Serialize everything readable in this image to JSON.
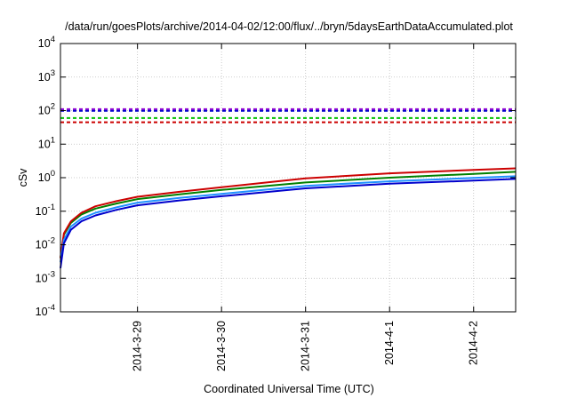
{
  "chart_data": {
    "type": "line",
    "title": "/data/run/goesPlots/archive/2014-04-02/12:00/flux/../bryn/5daysEarthDataAccumulated.plot",
    "xlabel": "Coordinated Universal Time (UTC)",
    "ylabel": "cSv",
    "yscale": "log",
    "ylim": [
      0.0001,
      10000
    ],
    "xlim": [
      "2014-03-28T02:00",
      "2014-04-02T12:00"
    ],
    "y_ticks": [
      {
        "base": "10",
        "exp": "-4",
        "value": 0.0001
      },
      {
        "base": "10",
        "exp": "-3",
        "value": 0.001
      },
      {
        "base": "10",
        "exp": "-2",
        "value": 0.01
      },
      {
        "base": "10",
        "exp": "-1",
        "value": 0.1
      },
      {
        "base": "10",
        "exp": "0",
        "value": 1
      },
      {
        "base": "10",
        "exp": "1",
        "value": 10
      },
      {
        "base": "10",
        "exp": "2",
        "value": 100
      },
      {
        "base": "10",
        "exp": "3",
        "value": 1000
      },
      {
        "base": "10",
        "exp": "4",
        "value": 10000
      }
    ],
    "x_ticks": [
      {
        "label": "2014-3-29",
        "value": "2014-03-29T00:00"
      },
      {
        "label": "2014-3-30",
        "value": "2014-03-30T00:00"
      },
      {
        "label": "2014-3-31",
        "value": "2014-03-31T00:00"
      },
      {
        "label": "2014-4-1",
        "value": "2014-04-01T00:00"
      },
      {
        "label": "2014-4-2",
        "value": "2014-04-02T00:00"
      }
    ],
    "grid": true,
    "x": [
      "2014-03-28T02:00",
      "2014-03-28T03:00",
      "2014-03-28T05:00",
      "2014-03-28T08:00",
      "2014-03-28T12:00",
      "2014-03-28T18:00",
      "2014-03-29T00:00",
      "2014-03-29T12:00",
      "2014-03-30T00:00",
      "2014-03-31T00:00",
      "2014-04-01T00:00",
      "2014-04-02T00:00",
      "2014-04-02T12:00"
    ],
    "series": [
      {
        "color": "#008000",
        "style": "solid",
        "values": [
          0.004,
          0.02,
          0.045,
          0.08,
          0.12,
          0.17,
          0.23,
          0.32,
          0.43,
          0.72,
          1.0,
          1.3,
          1.5
        ]
      },
      {
        "color": "#cc0000",
        "style": "solid",
        "values": [
          0.004,
          0.022,
          0.05,
          0.09,
          0.14,
          0.2,
          0.27,
          0.38,
          0.52,
          0.95,
          1.35,
          1.7,
          1.9
        ]
      },
      {
        "color": "#1e90ff",
        "style": "solid",
        "values": [
          0.003,
          0.014,
          0.035,
          0.06,
          0.09,
          0.13,
          0.18,
          0.25,
          0.33,
          0.57,
          0.78,
          0.98,
          1.1
        ]
      },
      {
        "color": "#0000cc",
        "style": "solid",
        "values": [
          0.002,
          0.011,
          0.028,
          0.05,
          0.075,
          0.11,
          0.15,
          0.21,
          0.28,
          0.48,
          0.66,
          0.82,
          0.92
        ]
      },
      {
        "color": "#9400d3",
        "style": "dashed",
        "values": [
          110,
          110,
          110,
          110,
          110,
          110,
          110,
          110,
          110,
          110,
          110,
          110,
          110
        ]
      },
      {
        "color": "#0000cc",
        "style": "dashed",
        "values": [
          98,
          98,
          98,
          98,
          98,
          98,
          98,
          98,
          98,
          98,
          98,
          98,
          98
        ]
      },
      {
        "color": "#00c000",
        "style": "dashed",
        "values": [
          60,
          60,
          60,
          60,
          60,
          60,
          60,
          60,
          60,
          60,
          60,
          60,
          60
        ]
      },
      {
        "color": "#cc0000",
        "style": "dashed",
        "values": [
          45,
          45,
          45,
          45,
          45,
          45,
          45,
          45,
          45,
          45,
          45,
          45,
          45
        ]
      }
    ]
  }
}
